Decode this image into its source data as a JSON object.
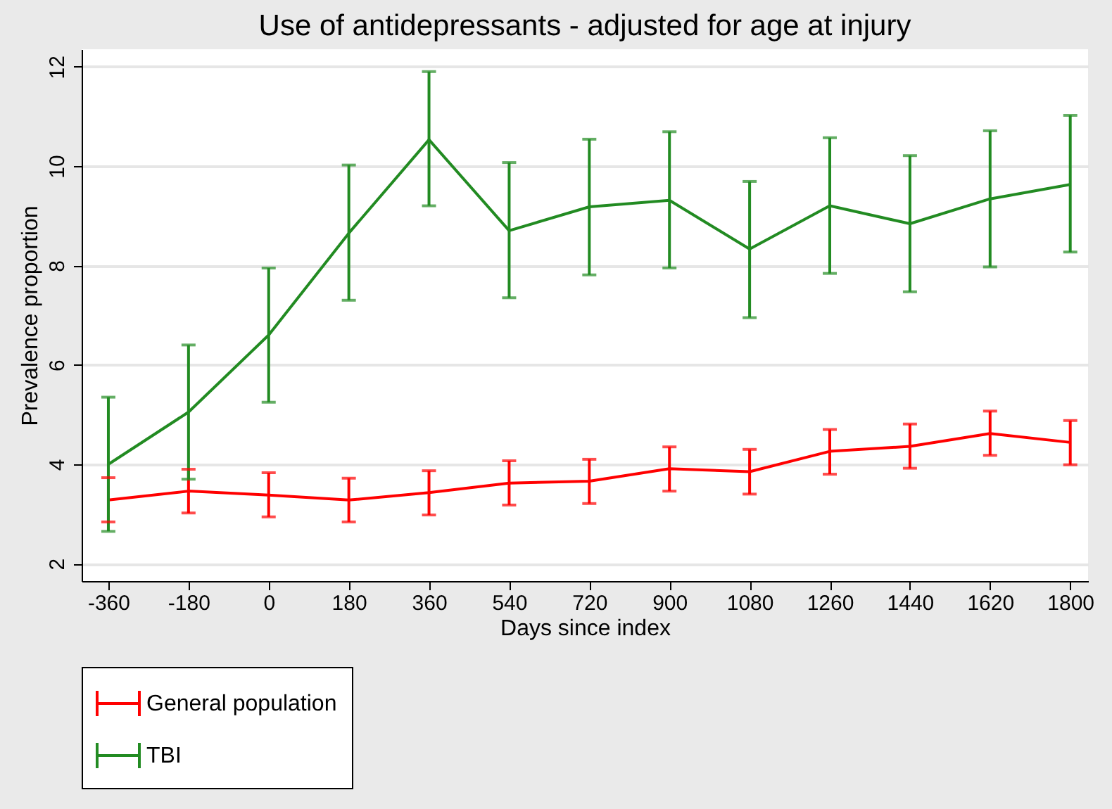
{
  "chart_data": {
    "type": "line",
    "title": "Use of antidepressants - adjusted for age at injury",
    "xlabel": "Days since index",
    "ylabel": "Prevalence proportion",
    "x": [
      -360,
      -180,
      0,
      180,
      360,
      540,
      720,
      900,
      1080,
      1260,
      1440,
      1620,
      1800
    ],
    "xlim": [
      -420,
      1840
    ],
    "xticks": [
      -360,
      -180,
      0,
      180,
      360,
      540,
      720,
      900,
      1080,
      1260,
      1440,
      1620,
      1800
    ],
    "ylim": [
      1.65,
      12.35
    ],
    "yticks": [
      2,
      4,
      6,
      8,
      10,
      12
    ],
    "grid": "y",
    "legend": "bottom",
    "marker": "none",
    "line_style": "solid",
    "series": [
      {
        "name": "General population",
        "color": "#ff0000",
        "values": [
          3.28,
          3.46,
          3.38,
          3.28,
          3.43,
          3.62,
          3.66,
          3.91,
          3.85,
          4.26,
          4.36,
          4.62,
          4.44
        ],
        "errors": [
          [
            2.84,
            3.73
          ],
          [
            3.02,
            3.9
          ],
          [
            2.94,
            3.83
          ],
          [
            2.84,
            3.72
          ],
          [
            2.98,
            3.87
          ],
          [
            3.18,
            4.07
          ],
          [
            3.21,
            4.1
          ],
          [
            3.46,
            4.35
          ],
          [
            3.4,
            4.3
          ],
          [
            3.8,
            4.7
          ],
          [
            3.92,
            4.81
          ],
          [
            4.18,
            5.07
          ],
          [
            3.99,
            4.88
          ]
        ]
      },
      {
        "name": "TBI",
        "color": "#228b22",
        "values": [
          4.0,
          5.05,
          6.6,
          8.65,
          10.53,
          8.7,
          9.18,
          9.31,
          8.33,
          9.2,
          8.84,
          9.34,
          9.63
        ],
        "errors": [
          [
            2.65,
            5.35
          ],
          [
            3.7,
            6.4
          ],
          [
            5.25,
            7.95
          ],
          [
            7.3,
            10.02
          ],
          [
            9.2,
            11.9
          ],
          [
            7.35,
            10.07
          ],
          [
            7.81,
            10.54
          ],
          [
            7.95,
            10.69
          ],
          [
            6.95,
            9.69
          ],
          [
            7.84,
            10.57
          ],
          [
            7.47,
            10.21
          ],
          [
            7.97,
            10.71
          ],
          [
            8.27,
            11.02
          ]
        ]
      }
    ]
  }
}
